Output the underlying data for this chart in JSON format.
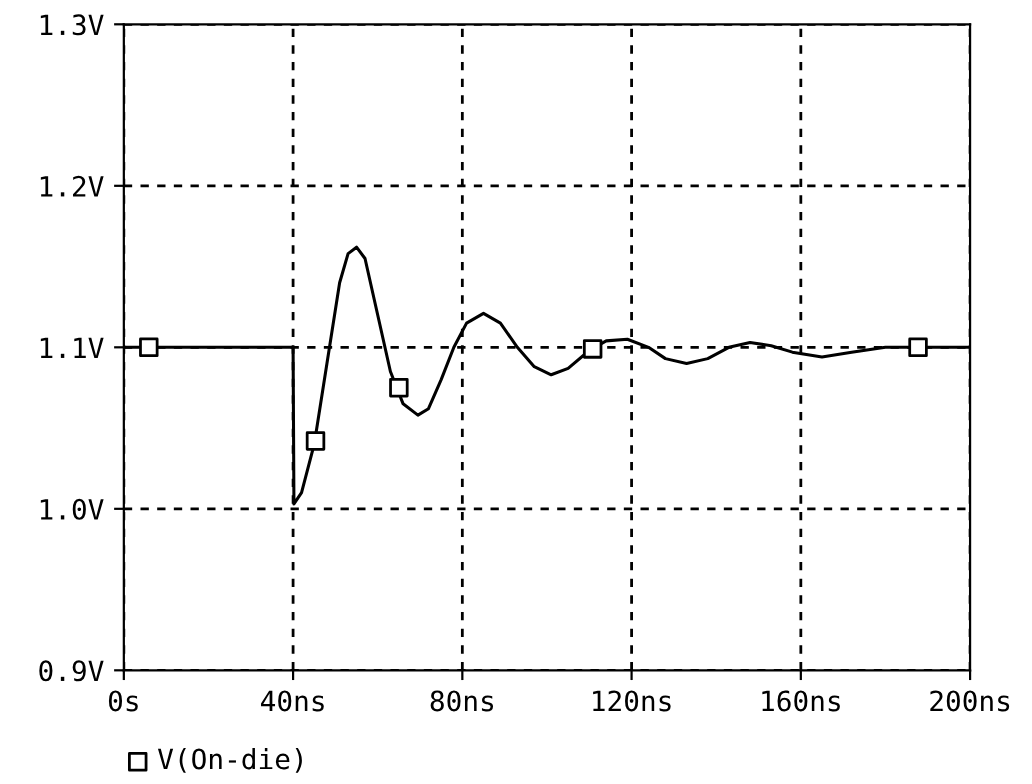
{
  "chart_data": {
    "type": "line",
    "xlim": [
      0,
      200
    ],
    "ylim": [
      0.9,
      1.3
    ],
    "xticks": [
      {
        "value": 0,
        "label": "0s"
      },
      {
        "value": 40,
        "label": "40ns"
      },
      {
        "value": 80,
        "label": "80ns"
      },
      {
        "value": 120,
        "label": "120ns"
      },
      {
        "value": 160,
        "label": "160ns"
      },
      {
        "value": 200,
        "label": "200ns"
      }
    ],
    "yticks": [
      {
        "value": 0.9,
        "label": "0.9V"
      },
      {
        "value": 1.0,
        "label": "1.0V"
      },
      {
        "value": 1.1,
        "label": "1.1V"
      },
      {
        "value": 1.2,
        "label": "1.2V"
      },
      {
        "value": 1.3,
        "label": "1.3V"
      }
    ],
    "grid": true,
    "legend": "bottom left",
    "series": [
      {
        "color": "#000000",
        "marker": "none",
        "x": [
          0,
          40,
          40.2,
          42,
          45,
          48,
          51,
          53,
          55,
          57,
          60,
          63,
          66,
          69.5,
          72,
          75,
          78,
          81,
          85,
          89,
          93,
          97,
          101,
          105,
          110,
          114,
          119,
          124,
          128,
          133,
          138,
          143,
          148,
          153,
          158,
          165,
          172,
          180,
          200
        ],
        "values": [
          1.1,
          1.1,
          1.003,
          1.01,
          1.04,
          1.09,
          1.14,
          1.158,
          1.162,
          1.155,
          1.12,
          1.085,
          1.065,
          1.058,
          1.062,
          1.08,
          1.1,
          1.115,
          1.121,
          1.115,
          1.1,
          1.088,
          1.083,
          1.087,
          1.098,
          1.104,
          1.105,
          1.1,
          1.093,
          1.09,
          1.093,
          1.1,
          1.103,
          1.101,
          1.097,
          1.094,
          1.097,
          1.1,
          1.1
        ]
      },
      {
        "type": "scatter",
        "name": "V(On-die)",
        "color": "#000000",
        "marker": "square",
        "x": [
          5.9,
          45.3,
          65,
          110.8,
          187.7
        ],
        "values": [
          1.1,
          1.042,
          1.075,
          1.099,
          1.1
        ]
      }
    ]
  }
}
